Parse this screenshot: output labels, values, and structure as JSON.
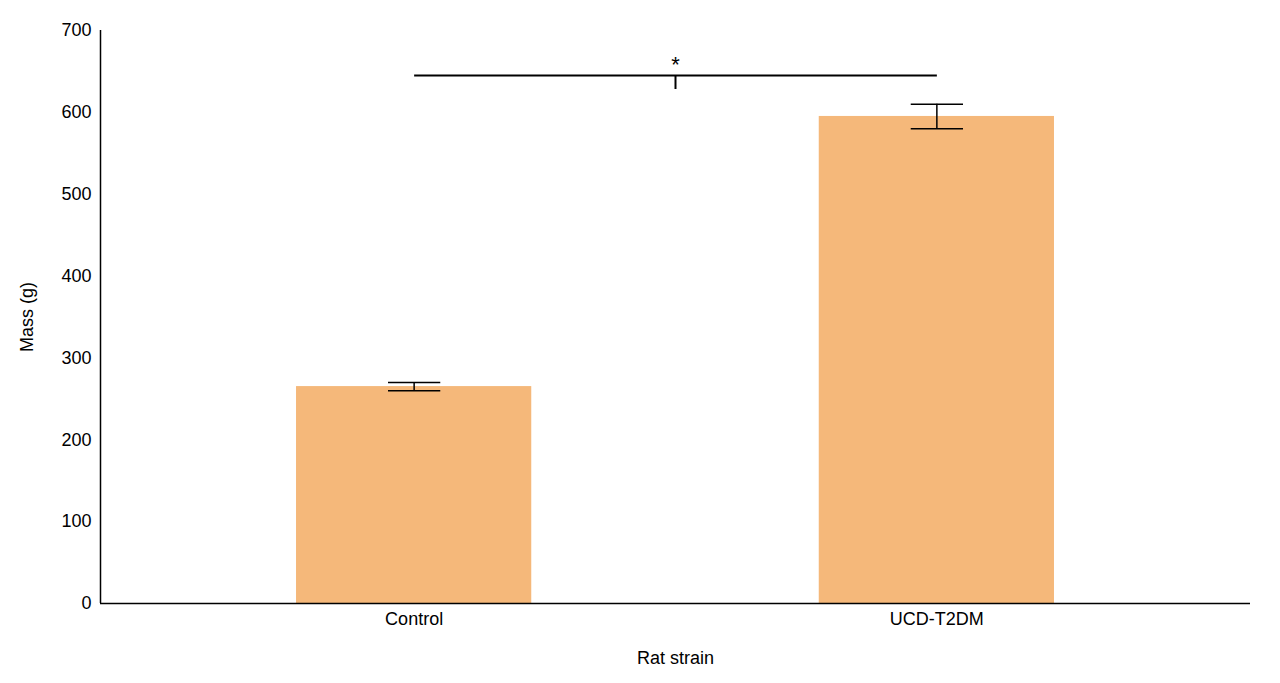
{
  "chart_data": {
    "type": "bar",
    "categories": [
      "Control",
      "UCD-T2DM"
    ],
    "values": [
      265,
      595
    ],
    "errors": [
      5,
      15
    ],
    "color": "#f5b87a",
    "xlabel": "Rat strain",
    "ylabel": "Mass (g)",
    "ylim": [
      0,
      700
    ],
    "yticks": [
      0,
      100,
      200,
      300,
      400,
      500,
      600,
      700
    ],
    "annotations": [
      {
        "text": "*",
        "y": 645,
        "from": "Control",
        "to": "UCD-T2DM"
      }
    ]
  }
}
